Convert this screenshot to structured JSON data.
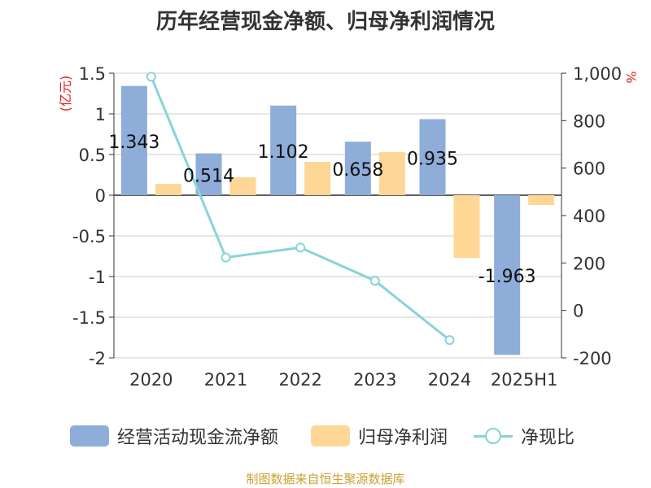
{
  "title": "历年经营现金净额、归母净利润情况",
  "source": "制图数据来自恒生聚源数据库",
  "chart_data": {
    "type": "bar",
    "categories": [
      "2020",
      "2021",
      "2022",
      "2023",
      "2024",
      "2025H1"
    ],
    "y_left": {
      "label": "(亿元)",
      "range": [
        -2,
        1.5
      ],
      "ticks": [
        "1.5",
        "1",
        "0.5",
        "0",
        "-0.5",
        "-1",
        "-1.5",
        "-2"
      ]
    },
    "y_right": {
      "label": "%",
      "range": [
        -200,
        1000
      ],
      "ticks": [
        "1,000",
        "800",
        "600",
        "400",
        "200",
        "0",
        "-200"
      ]
    },
    "series": [
      {
        "name": "经营活动现金流净额",
        "kind": "bar",
        "axis": "left",
        "color": "#8eadd9",
        "values": [
          1.343,
          0.514,
          1.102,
          0.658,
          0.935,
          -1.963
        ],
        "labels": [
          "1.343",
          "0.514",
          "1.102",
          "0.658",
          "0.935",
          "-1.963"
        ]
      },
      {
        "name": "归母净利润",
        "kind": "bar",
        "axis": "left",
        "color": "#fed797",
        "values": [
          0.14,
          0.22,
          0.41,
          0.53,
          -0.77,
          -0.12
        ]
      },
      {
        "name": "净现比",
        "kind": "line",
        "axis": "right",
        "color": "#88d4d8",
        "values": [
          985,
          223,
          265,
          125,
          -125,
          null
        ]
      }
    ],
    "grid": true,
    "legend": "bottom"
  }
}
